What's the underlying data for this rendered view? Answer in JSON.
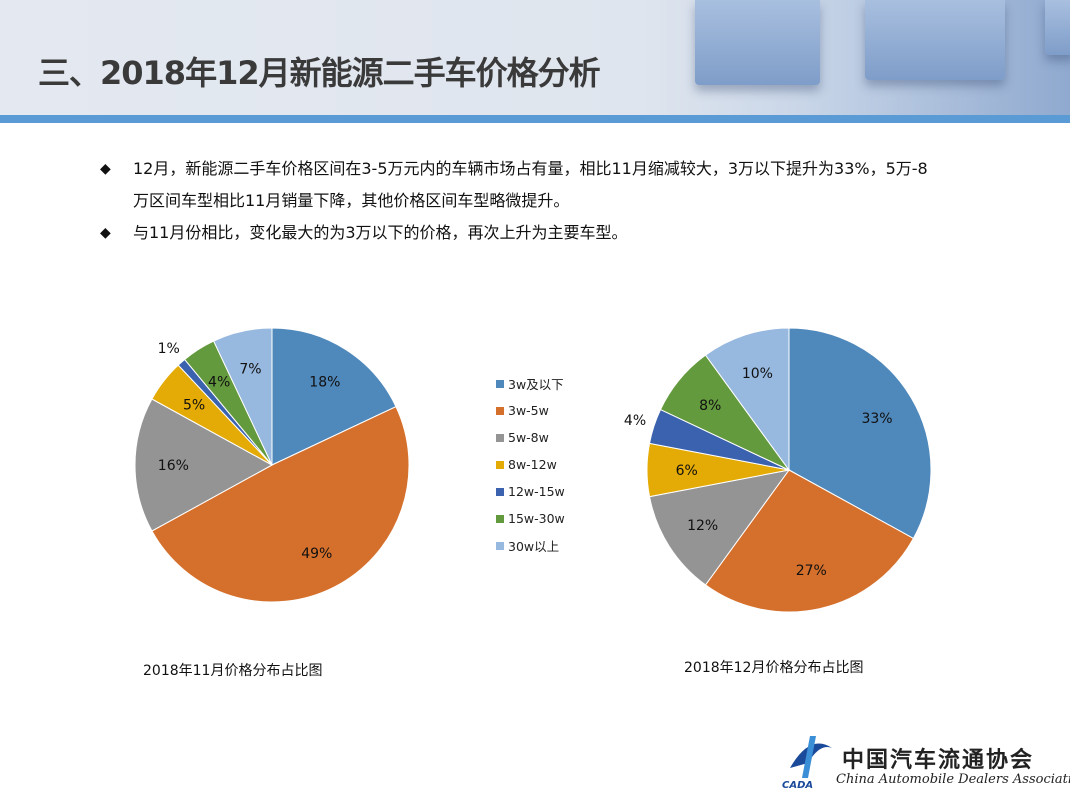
{
  "header": {
    "title": "三、2018年12月新能源二手车价格分析"
  },
  "bullets": [
    {
      "icon": "diamond-bullet",
      "text": "12月，新能源二手车价格区间在3-5万元内的车辆市场占有量，相比11月缩减较大，3万以下提升为33%，5万-8万区间车型相比11月销量下降，其他价格区间车型略微提升。"
    },
    {
      "icon": "diamond-bullet",
      "text": "与11月份相比，变化最大的为3万以下的价格，再次上升为主要车型。"
    }
  ],
  "legend": {
    "placement": "center",
    "items": [
      {
        "label": "3w及以下",
        "color": "#4f88bb"
      },
      {
        "label": "3w-5w",
        "color": "#d5702c"
      },
      {
        "label": "5w-8w",
        "color": "#949494"
      },
      {
        "label": "8w-12w",
        "color": "#e4aa05"
      },
      {
        "label": "12w-15w",
        "color": "#3b62ae"
      },
      {
        "label": "15w-30w",
        "color": "#649a3e"
      },
      {
        "label": "30w以上",
        "color": "#97b8df"
      }
    ]
  },
  "chart_data": [
    {
      "type": "pie",
      "title": "2018年11月价格分布占比图",
      "categories": [
        "3w及以下",
        "3w-5w",
        "5w-8w",
        "8w-12w",
        "12w-15w",
        "15w-30w",
        "30w以上"
      ],
      "values": [
        18,
        49,
        16,
        5,
        1,
        4,
        7
      ],
      "labels": [
        "18%",
        "49%",
        "16%",
        "5%",
        "1%",
        "4%",
        "7%"
      ]
    },
    {
      "type": "pie",
      "title": "2018年12月价格分布占比图",
      "categories": [
        "3w及以下",
        "3w-5w",
        "5w-8w",
        "8w-12w",
        "12w-15w",
        "15w-30w",
        "30w以上"
      ],
      "values": [
        33,
        27,
        12,
        6,
        4,
        8,
        10
      ],
      "labels": [
        "33%",
        "27%",
        "12%",
        "6%",
        "4%",
        "8%",
        "10%"
      ]
    }
  ],
  "logo": {
    "cn": "中国汽车流通协会",
    "en": "China Automobile Dealers Association",
    "abbr": "CADA"
  }
}
